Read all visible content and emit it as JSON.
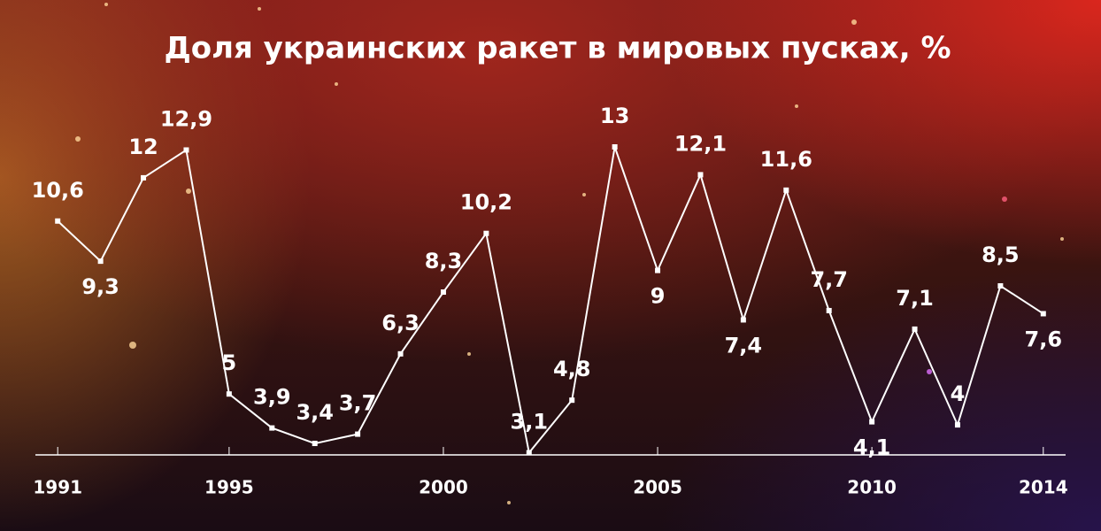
{
  "chart_data": {
    "type": "line",
    "title": "Доля украинских ракет в мировых пусках, %",
    "x": [
      1991,
      1992,
      1993,
      1994,
      1995,
      1996,
      1997,
      1998,
      1999,
      2000,
      2001,
      2002,
      2003,
      2004,
      2005,
      2006,
      2007,
      2008,
      2009,
      2010,
      2011,
      2012,
      2013,
      2014
    ],
    "values": [
      10.6,
      9.3,
      12,
      12.9,
      5,
      3.9,
      3.4,
      3.7,
      6.3,
      8.3,
      10.2,
      3.1,
      4.8,
      13,
      9,
      12.1,
      7.4,
      11.6,
      7.7,
      4.1,
      7.1,
      4,
      8.5,
      7.6
    ],
    "value_labels": [
      "10,6",
      "9,3",
      "12",
      "12,9",
      "5",
      "3,9",
      "3,4",
      "3,7",
      "6,3",
      "8,3",
      "10,2",
      "3,1",
      "4,8",
      "13",
      "9",
      "12,1",
      "7,4",
      "11,6",
      "7,7",
      "4,1",
      "7,1",
      "4",
      "8,5",
      "7,6"
    ],
    "color": "#ffffff",
    "xlim": [
      1990.5,
      2014.5
    ],
    "xticks": [
      1991,
      1995,
      2000,
      2005,
      2010,
      2014
    ],
    "ylim": [
      3,
      13
    ]
  }
}
